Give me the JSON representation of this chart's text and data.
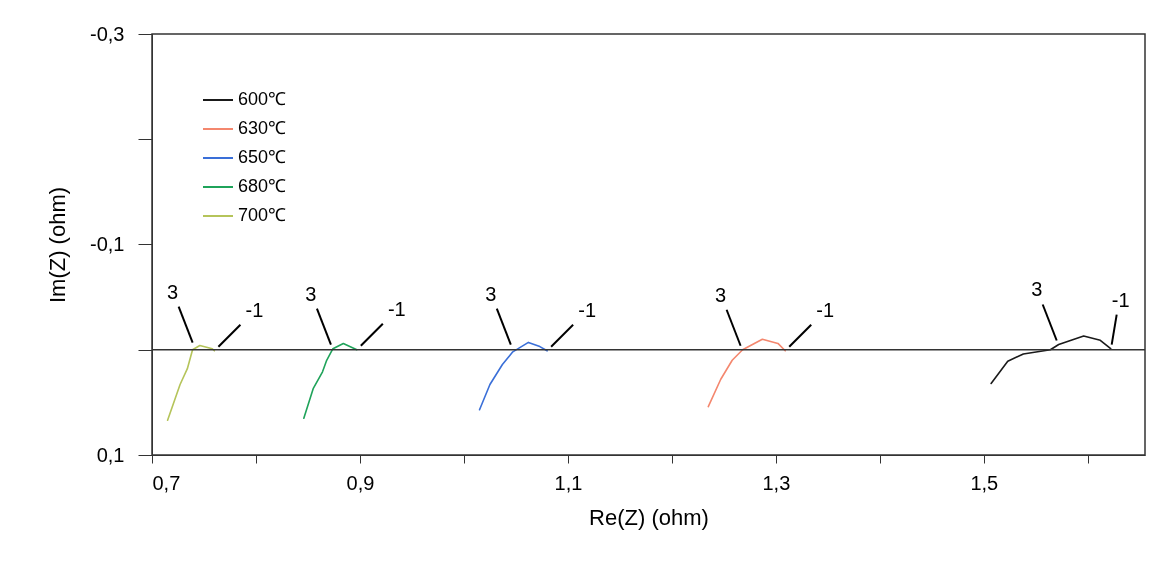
{
  "chart_data": {
    "type": "line",
    "xlabel": "Re(Z) (ohm)",
    "ylabel": "Im(Z) (ohm)",
    "xlim": [
      0.7,
      1.655
    ],
    "ylim": [
      0.1,
      -0.3
    ],
    "xticks": [
      {
        "value": 0.7,
        "label": "0,7"
      },
      {
        "value": 0.8,
        "label": null
      },
      {
        "value": 0.9,
        "label": "0,9"
      },
      {
        "value": 1.0,
        "label": null
      },
      {
        "value": 1.1,
        "label": "1,1"
      },
      {
        "value": 1.2,
        "label": null
      },
      {
        "value": 1.3,
        "label": "1,3"
      },
      {
        "value": 1.4,
        "label": null
      },
      {
        "value": 1.5,
        "label": "1,5"
      },
      {
        "value": 1.6,
        "label": null
      }
    ],
    "yticks": [
      {
        "value": -0.3,
        "label": "-0,3"
      },
      {
        "value": -0.2,
        "label": null
      },
      {
        "value": -0.1,
        "label": "-0,1"
      },
      {
        "value": 0,
        "label": null
      },
      {
        "value": 0.1,
        "label": "0,1"
      }
    ],
    "legend": "top left",
    "grid": false,
    "ref_lines": [
      {
        "axis": "y",
        "value": 0,
        "color": "#333333"
      }
    ],
    "series": [
      {
        "name": "600℃",
        "color": "#1a1a1a",
        "x": [
          1.507,
          1.523,
          1.538,
          1.564,
          1.572,
          1.596,
          1.612,
          1.622
        ],
        "values": [
          0.032,
          0.011,
          0.004,
          0,
          -0.005,
          -0.013,
          -0.009,
          -0.001
        ]
      },
      {
        "name": "630℃",
        "color": "#f4876e",
        "x": [
          1.235,
          1.247,
          1.258,
          1.268,
          1.287,
          1.302,
          1.309
        ],
        "values": [
          0.054,
          0.028,
          0.01,
          0,
          -0.01,
          -0.006,
          0.001
        ]
      },
      {
        "name": "650℃",
        "color": "#3a6fd8",
        "x": [
          1.015,
          1.025,
          1.037,
          1.047,
          1.062,
          1.073,
          1.08
        ],
        "values": [
          0.057,
          0.033,
          0.014,
          0.002,
          -0.007,
          -0.003,
          0.001
        ]
      },
      {
        "name": "680℃",
        "color": "#1fa35a",
        "x": [
          0.846,
          0.855,
          0.864,
          0.868,
          0.874,
          0.884,
          0.897
        ],
        "values": [
          0.065,
          0.037,
          0.021,
          0.01,
          -0.001,
          -0.006,
          0
        ]
      },
      {
        "name": "700℃",
        "color": "#b5c45a",
        "x": [
          0.715,
          0.727,
          0.734,
          0.739,
          0.746,
          0.758,
          0.76
        ],
        "values": [
          0.067,
          0.033,
          0.018,
          0,
          -0.004,
          -0.001,
          0.001
        ]
      }
    ],
    "annotations": [
      {
        "text": "3",
        "x": 0.741,
        "y": -0.003
      },
      {
        "text": "-1",
        "x": 0.76,
        "y": 0.001
      },
      {
        "text": "3",
        "x": 0.874,
        "y": -0.001
      },
      {
        "text": "-1",
        "x": 0.897,
        "y": 0
      },
      {
        "text": "3",
        "x": 1.047,
        "y": -0.001
      },
      {
        "text": "-1",
        "x": 1.08,
        "y": 0.001
      },
      {
        "text": "3",
        "x": 1.268,
        "y": 0
      },
      {
        "text": "-1",
        "x": 1.309,
        "y": 0.001
      },
      {
        "text": "3",
        "x": 1.572,
        "y": -0.005
      },
      {
        "text": "-1",
        "x": 1.622,
        "y": -0.001
      }
    ]
  }
}
